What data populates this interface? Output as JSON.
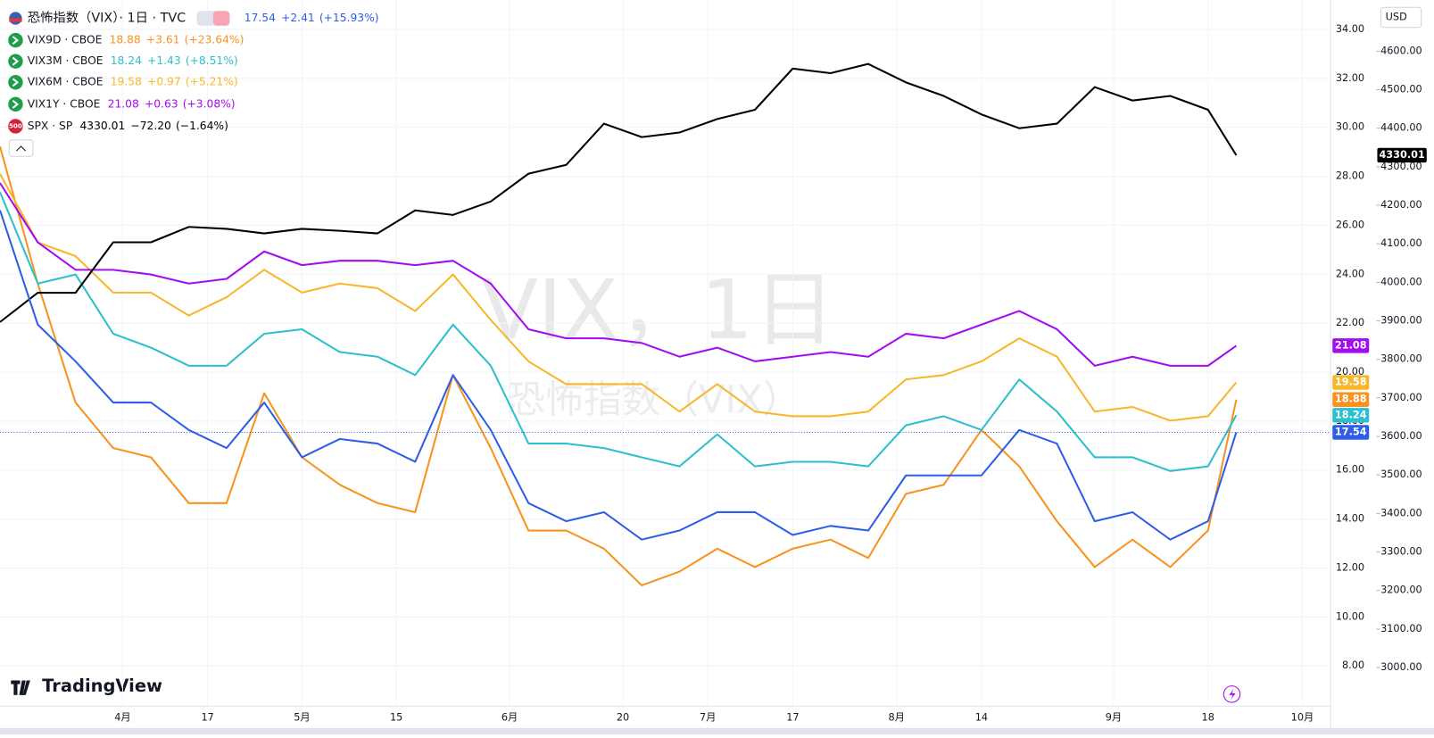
{
  "chart_data": {
    "type": "line",
    "title": "恐怖指数（VIX）· 1日 · TVC",
    "watermark": "VIX，1日",
    "watermark_sub": "恐怖指数（VIX）",
    "currency": "USD",
    "brand": "TradingView",
    "x": [
      0,
      4,
      8,
      12,
      16,
      20,
      24,
      28,
      32,
      36,
      40,
      44,
      48,
      52,
      56,
      60,
      64,
      68,
      72,
      76,
      80,
      84,
      88,
      92,
      96,
      100,
      104,
      108,
      112,
      116,
      120,
      124,
      128,
      131
    ],
    "xlim": [
      0,
      141
    ],
    "xticks": [
      {
        "value": 13,
        "label": "4月"
      },
      {
        "value": 22,
        "label": "17"
      },
      {
        "value": 32,
        "label": "5月"
      },
      {
        "value": 42,
        "label": "15"
      },
      {
        "value": 54,
        "label": "6月"
      },
      {
        "value": 66,
        "label": "20"
      },
      {
        "value": 75,
        "label": "7月"
      },
      {
        "value": 84,
        "label": "17"
      },
      {
        "value": 95,
        "label": "8月"
      },
      {
        "value": 104,
        "label": "14"
      },
      {
        "value": 118,
        "label": "9月"
      },
      {
        "value": 128,
        "label": "18"
      },
      {
        "value": 138,
        "label": "10月"
      }
    ],
    "ylim": [
      6.36,
      35.2
    ],
    "yticks": [
      {
        "value": 8,
        "label": "8.00"
      },
      {
        "value": 10,
        "label": "10.00"
      },
      {
        "value": 12,
        "label": "12.00"
      },
      {
        "value": 14,
        "label": "14.00"
      },
      {
        "value": 16,
        "label": "16.00"
      },
      {
        "value": 18,
        "label": "18.00"
      },
      {
        "value": 20,
        "label": "20.00"
      },
      {
        "value": 22,
        "label": "22.00"
      },
      {
        "value": 24,
        "label": "24.00"
      },
      {
        "value": 26,
        "label": "26.00"
      },
      {
        "value": 28,
        "label": "28.00"
      },
      {
        "value": 30,
        "label": "30.00"
      },
      {
        "value": 32,
        "label": "32.00"
      },
      {
        "value": 34,
        "label": "34.00"
      }
    ],
    "y2lim": [
      2900,
      4733
    ],
    "y2ticks": [
      {
        "value": 3000,
        "label": "3000.00"
      },
      {
        "value": 3100,
        "label": "3100.00"
      },
      {
        "value": 3200,
        "label": "3200.00"
      },
      {
        "value": 3300,
        "label": "3300.00"
      },
      {
        "value": 3400,
        "label": "3400.00"
      },
      {
        "value": 3500,
        "label": "3500.00"
      },
      {
        "value": 3600,
        "label": "3600.00"
      },
      {
        "value": 3700,
        "label": "3700.00"
      },
      {
        "value": 3800,
        "label": "3800.00"
      },
      {
        "value": 3900,
        "label": "3900.00"
      },
      {
        "value": 4000,
        "label": "4000.00"
      },
      {
        "value": 4100,
        "label": "4100.00"
      },
      {
        "value": 4200,
        "label": "4200.00"
      },
      {
        "value": 4300,
        "label": "4300.00"
      },
      {
        "value": 4400,
        "label": "4400.00"
      },
      {
        "value": 4500,
        "label": "4500.00"
      },
      {
        "value": 4600,
        "label": "4600.00"
      }
    ],
    "grid": true,
    "series": [
      {
        "name": "恐怖指数（VIX）· 1日 · TVC",
        "short": "VIX",
        "color": "#2d5ee9",
        "axis": "y",
        "change": "+2.41",
        "change_pct": "(+15.93%)",
        "values": [
          26.61,
          21.94,
          20.44,
          18.76,
          18.76,
          17.64,
          16.9,
          18.76,
          16.52,
          17.27,
          17.08,
          16.34,
          19.88,
          17.64,
          14.65,
          13.91,
          14.28,
          13.16,
          13.53,
          14.28,
          14.28,
          13.35,
          13.72,
          13.53,
          15.78,
          15.78,
          15.78,
          17.64,
          17.08,
          13.91,
          14.28,
          13.16,
          13.91,
          17.54
        ]
      },
      {
        "name": "VIX9D · CBOE",
        "color": "#f7931e",
        "axis": "y",
        "change": "+3.61",
        "change_pct": "(+23.64%)",
        "values": [
          29.22,
          23.62,
          18.76,
          16.9,
          16.52,
          14.65,
          14.65,
          19.14,
          16.52,
          15.4,
          14.65,
          14.28,
          19.88,
          16.9,
          13.53,
          13.53,
          12.79,
          11.29,
          11.85,
          12.79,
          12.04,
          12.79,
          13.16,
          12.41,
          15.03,
          15.4,
          17.64,
          16.15,
          13.91,
          12.04,
          13.16,
          12.04,
          13.53,
          18.88
        ]
      },
      {
        "name": "VIX3M · CBOE",
        "color": "#2cbfce",
        "axis": "y",
        "change": "+1.43",
        "change_pct": "(+8.51%)",
        "values": [
          27.36,
          23.62,
          23.99,
          21.57,
          21.0,
          20.26,
          20.26,
          21.57,
          21.75,
          20.82,
          20.63,
          19.88,
          21.94,
          20.26,
          17.08,
          17.08,
          16.9,
          16.52,
          16.15,
          17.46,
          16.15,
          16.34,
          16.34,
          16.15,
          17.83,
          18.2,
          17.64,
          19.7,
          18.39,
          16.52,
          16.52,
          15.96,
          16.15,
          18.24
        ]
      },
      {
        "name": "VIX6M · CBOE",
        "color": "#f8b62b",
        "axis": "y",
        "change": "+0.97",
        "change_pct": "(+5.21%)",
        "values": [
          28.1,
          25.3,
          24.74,
          23.25,
          23.25,
          22.31,
          23.06,
          24.18,
          23.25,
          23.62,
          23.43,
          22.5,
          23.99,
          22.13,
          20.44,
          19.51,
          19.51,
          19.51,
          18.39,
          19.51,
          18.39,
          18.2,
          18.2,
          18.39,
          19.7,
          19.88,
          20.44,
          21.38,
          20.63,
          18.39,
          18.58,
          18.02,
          18.2,
          19.58
        ]
      },
      {
        "name": "VIX1Y · CBOE",
        "color": "#a30cf2",
        "axis": "y",
        "change": "+0.63",
        "change_pct": "(+3.08%)",
        "values": [
          27.73,
          25.3,
          24.18,
          24.18,
          23.99,
          23.62,
          23.81,
          24.93,
          24.37,
          24.55,
          24.55,
          24.37,
          24.55,
          23.62,
          21.75,
          21.38,
          21.38,
          21.19,
          20.63,
          21.0,
          20.44,
          20.63,
          20.82,
          20.63,
          21.57,
          21.38,
          21.94,
          22.5,
          21.75,
          20.26,
          20.63,
          20.26,
          20.26,
          21.08
        ]
      },
      {
        "name": "SPX · SP",
        "badge": "500",
        "color": "#000000",
        "axis": "y2",
        "change": "−72.20",
        "change_pct": "(−1.64%)",
        "values": [
          3897,
          3973,
          3973,
          4104,
          4104,
          4144,
          4139,
          4127,
          4139,
          4134,
          4127,
          4187,
          4175,
          4210,
          4282,
          4305,
          4412,
          4377,
          4389,
          4424,
          4448,
          4555,
          4543,
          4567,
          4519,
          4484,
          4436,
          4400,
          4412,
          4507,
          4472,
          4484,
          4448,
          4330.01
        ]
      }
    ]
  }
}
